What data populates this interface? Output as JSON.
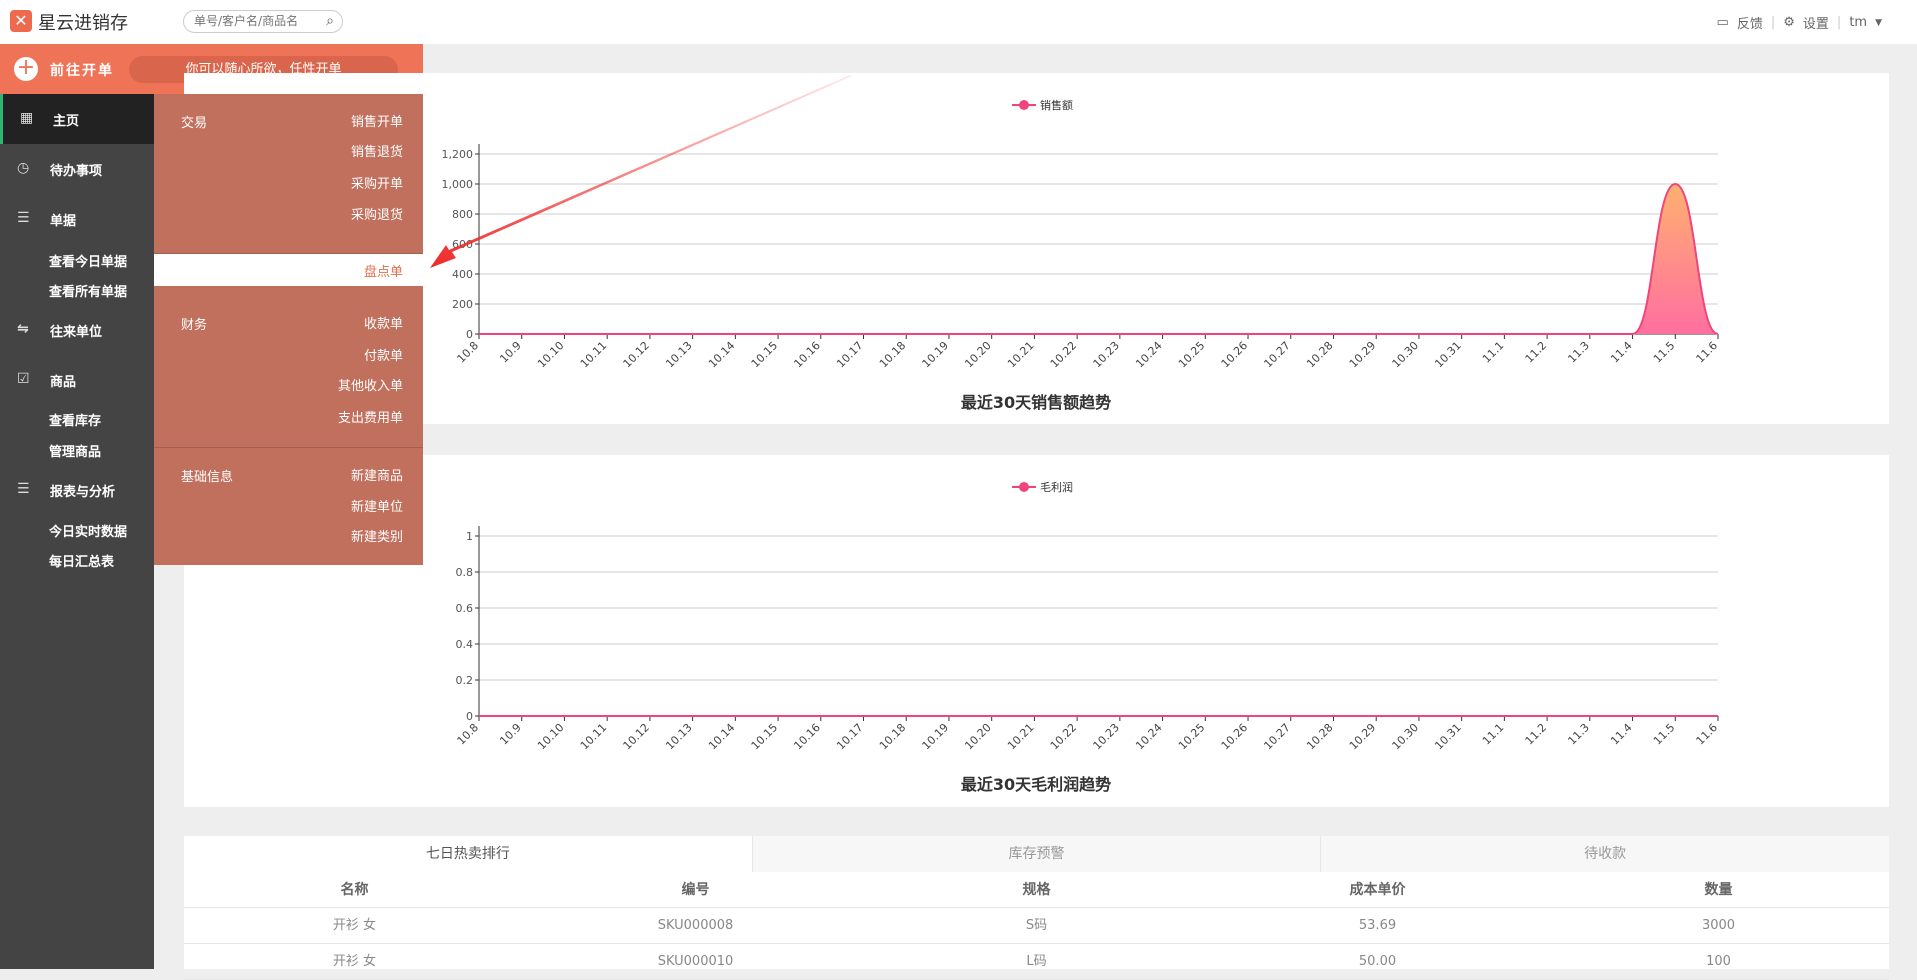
{
  "header": {
    "brand": "星云进销存",
    "search_placeholder": "单号/客户名/商品名",
    "feedback": "反馈",
    "settings": "设置",
    "user": "tm"
  },
  "topbar": {
    "new_order": "前往开单",
    "slogan": "你可以随心所欲，任性开单"
  },
  "sidebar": {
    "items": [
      {
        "label": "主页",
        "icon": "grid-icon",
        "active": true
      },
      {
        "label": "待办事项",
        "icon": "clock-icon"
      },
      {
        "label": "单据",
        "icon": "list-icon",
        "children": [
          "查看今日单据",
          "查看所有单据"
        ]
      },
      {
        "label": "往来单位",
        "icon": "exchange-icon"
      },
      {
        "label": "商品",
        "icon": "clipboard-check-icon",
        "children": [
          "查看库存",
          "管理商品"
        ]
      },
      {
        "label": "报表与分析",
        "icon": "bars-icon",
        "children": [
          "今日实时数据",
          "每日汇总表"
        ]
      }
    ]
  },
  "menu": {
    "sections": [
      {
        "title": "交易",
        "items": [
          "销售开单",
          "销售退货",
          "采购开单",
          "采购退货"
        ]
      },
      {
        "title": "",
        "items": [
          "盘点单"
        ],
        "highlighted": true
      },
      {
        "title": "财务",
        "items": [
          "收款单",
          "付款单",
          "其他收入单",
          "支出费用单"
        ]
      },
      {
        "title": "基础信息",
        "items": [
          "新建商品",
          "新建单位",
          "新建类别"
        ]
      }
    ]
  },
  "chart_data": [
    {
      "type": "area",
      "title": "最近30天销售额趋势",
      "legend": "销售额",
      "legend_position": "top-center",
      "grid": true,
      "categories": [
        "10.8",
        "10.9",
        "10.10",
        "10.11",
        "10.12",
        "10.13",
        "10.14",
        "10.15",
        "10.16",
        "10.17",
        "10.18",
        "10.19",
        "10.20",
        "10.21",
        "10.22",
        "10.23",
        "10.24",
        "10.25",
        "10.26",
        "10.27",
        "10.28",
        "10.29",
        "10.30",
        "10.31",
        "11.1",
        "11.2",
        "11.3",
        "11.4",
        "11.5",
        "11.6"
      ],
      "values": [
        0,
        0,
        0,
        0,
        0,
        0,
        0,
        0,
        0,
        0,
        0,
        0,
        0,
        0,
        0,
        0,
        0,
        0,
        0,
        0,
        0,
        0,
        0,
        0,
        0,
        0,
        0,
        0,
        1000,
        0
      ],
      "ylim": [
        0,
        1200
      ],
      "yticks": [
        0,
        200,
        400,
        600,
        800,
        1000,
        1200
      ],
      "color": "#f0457a",
      "fill_top": "#ffb070",
      "fill_bottom": "#ff6fa0"
    },
    {
      "type": "line",
      "title": "最近30天毛利润趋势",
      "legend": "毛利润",
      "legend_position": "top-center",
      "grid": true,
      "categories": [
        "10.8",
        "10.9",
        "10.10",
        "10.11",
        "10.12",
        "10.13",
        "10.14",
        "10.15",
        "10.16",
        "10.17",
        "10.18",
        "10.19",
        "10.20",
        "10.21",
        "10.22",
        "10.23",
        "10.24",
        "10.25",
        "10.26",
        "10.27",
        "10.28",
        "10.29",
        "10.30",
        "10.31",
        "11.1",
        "11.2",
        "11.3",
        "11.4",
        "11.5",
        "11.6"
      ],
      "values": [
        0,
        0,
        0,
        0,
        0,
        0,
        0,
        0,
        0,
        0,
        0,
        0,
        0,
        0,
        0,
        0,
        0,
        0,
        0,
        0,
        0,
        0,
        0,
        0,
        0,
        0,
        0,
        0,
        0,
        0
      ],
      "ylim": [
        0,
        1
      ],
      "yticks": [
        0,
        0.2,
        0.4,
        0.6,
        0.8,
        1
      ],
      "color": "#f0457a"
    }
  ],
  "table": {
    "tabs": [
      "七日热卖排行",
      "库存预警",
      "待收款"
    ],
    "columns": [
      "名称",
      "编号",
      "规格",
      "成本单价",
      "数量"
    ],
    "rows": [
      [
        "开衫 女",
        "SKU000008",
        "S码",
        "53.69",
        "3000"
      ],
      [
        "开衫 女",
        "SKU000010",
        "L码",
        "50.00",
        "100"
      ]
    ]
  }
}
